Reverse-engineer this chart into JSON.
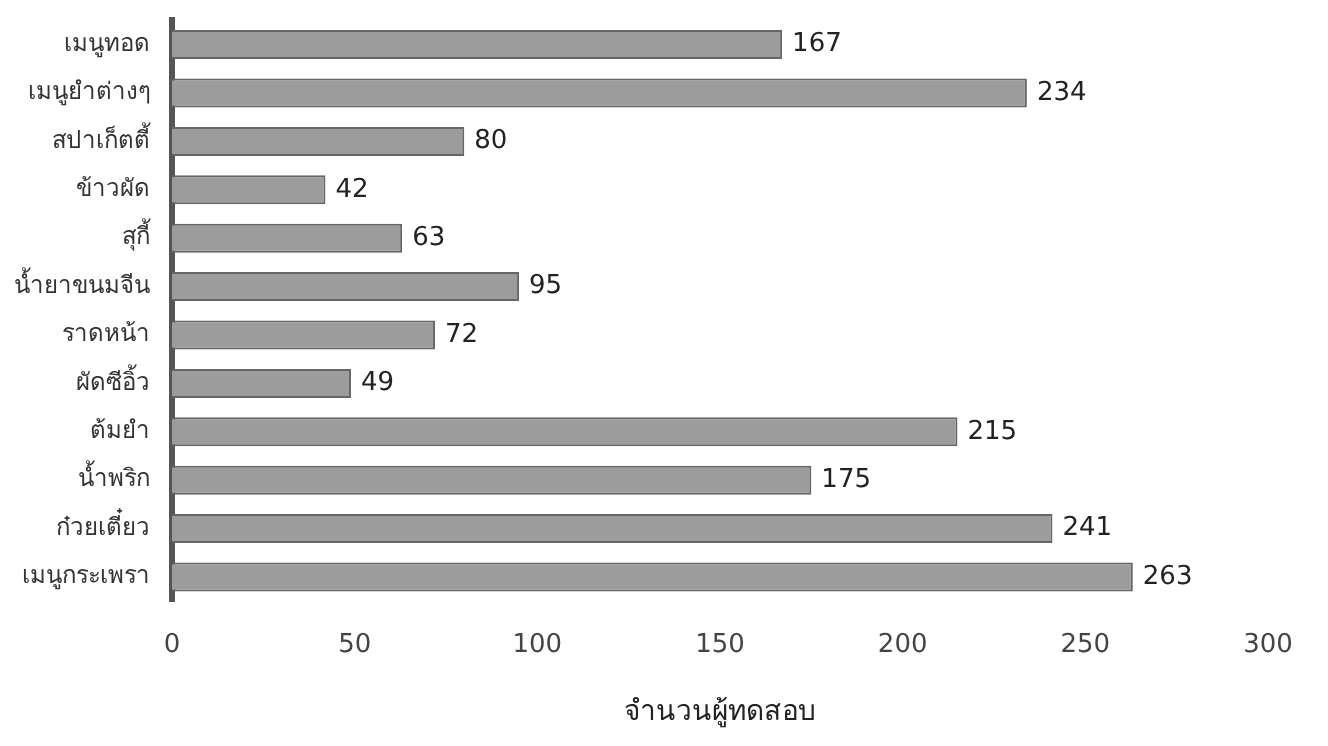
{
  "chart_data": {
    "type": "bar",
    "orientation": "horizontal",
    "xlabel": "จำนวนผู้ทดสอบ",
    "categories": [
      "เมนูทอด",
      "เมนูยำต่างๆ",
      "สปาเก็ตตี้",
      "ข้าวผัด",
      "สุกี้",
      "น้ำยาขนมจีน",
      "ราดหน้า",
      "ผัดซีอิ้ว",
      "ต้มยำ",
      "น้ำพริก",
      "ก๋วยเตี๋ยว",
      "เมนูกระเพรา"
    ],
    "values": [
      167,
      234,
      80,
      42,
      63,
      95,
      72,
      49,
      215,
      175,
      241,
      263
    ],
    "color": "#9c9c9c",
    "xlim": [
      0,
      300
    ],
    "xticks": [
      0,
      50,
      100,
      150,
      200,
      250,
      300
    ],
    "grid": false,
    "data_labels": true
  }
}
